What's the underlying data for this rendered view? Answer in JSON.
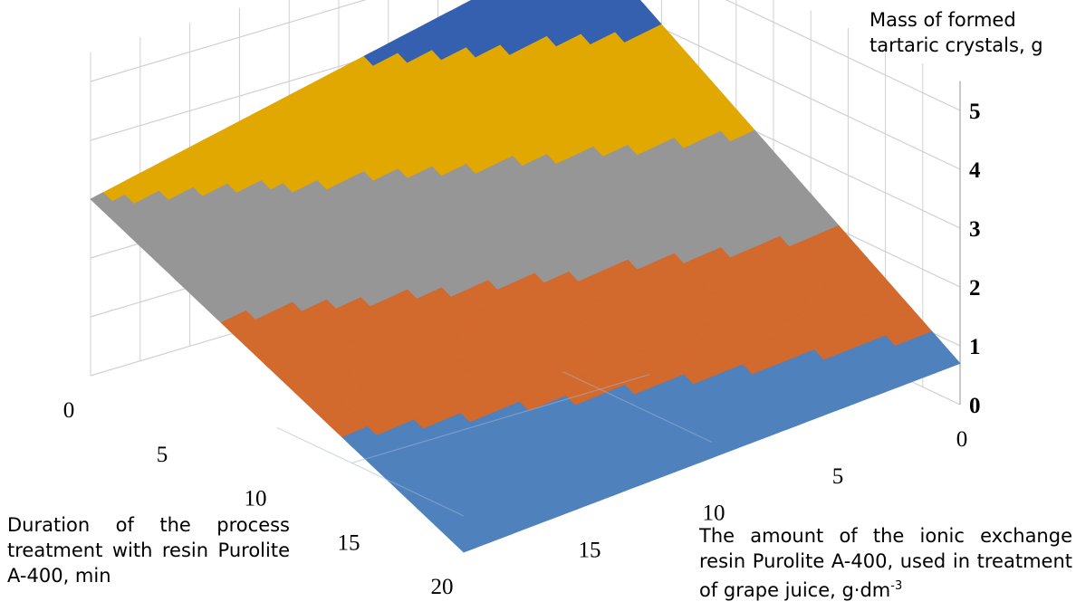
{
  "chart_data": {
    "type": "3d-surface",
    "z_axis": {
      "label_line1": "Mass of formed",
      "label_line2": "tartaric crystals, g",
      "ticks": [
        "0",
        "1",
        "2",
        "3",
        "4",
        "5"
      ],
      "range": [
        0,
        5
      ]
    },
    "x_axis": {
      "label": "Duration of the process treatment with resin Purolite A-400, min",
      "ticks": [
        "0",
        "5",
        "10",
        "15",
        "20"
      ],
      "range": [
        0,
        20
      ]
    },
    "y_axis": {
      "label_main": "The amount of the ionic exchange resin Purolite A-400, used in treatment of grape juice, g·dm",
      "label_sup": "-3",
      "ticks": [
        "0",
        "5",
        "10",
        "15"
      ],
      "range": [
        0,
        20
      ]
    },
    "surface_corners": [
      {
        "duration_min": 0,
        "resin_g_dm3": 0,
        "mass_g": 4.9
      },
      {
        "duration_min": 0,
        "resin_g_dm3": 20,
        "mass_g": 3.0
      },
      {
        "duration_min": 20,
        "resin_g_dm3": 20,
        "mass_g": 0.0
      },
      {
        "duration_min": 20,
        "resin_g_dm3": 0,
        "mass_g": 0.7
      }
    ],
    "color_bands": [
      {
        "range": "0-1",
        "color": "#4f81bd"
      },
      {
        "range": "1-2",
        "color": "#d2692d"
      },
      {
        "range": "2-3",
        "color": "#969696"
      },
      {
        "range": "3-4",
        "color": "#e0a800"
      },
      {
        "range": "4-5",
        "color": "#3560b0"
      }
    ],
    "grid": true
  }
}
